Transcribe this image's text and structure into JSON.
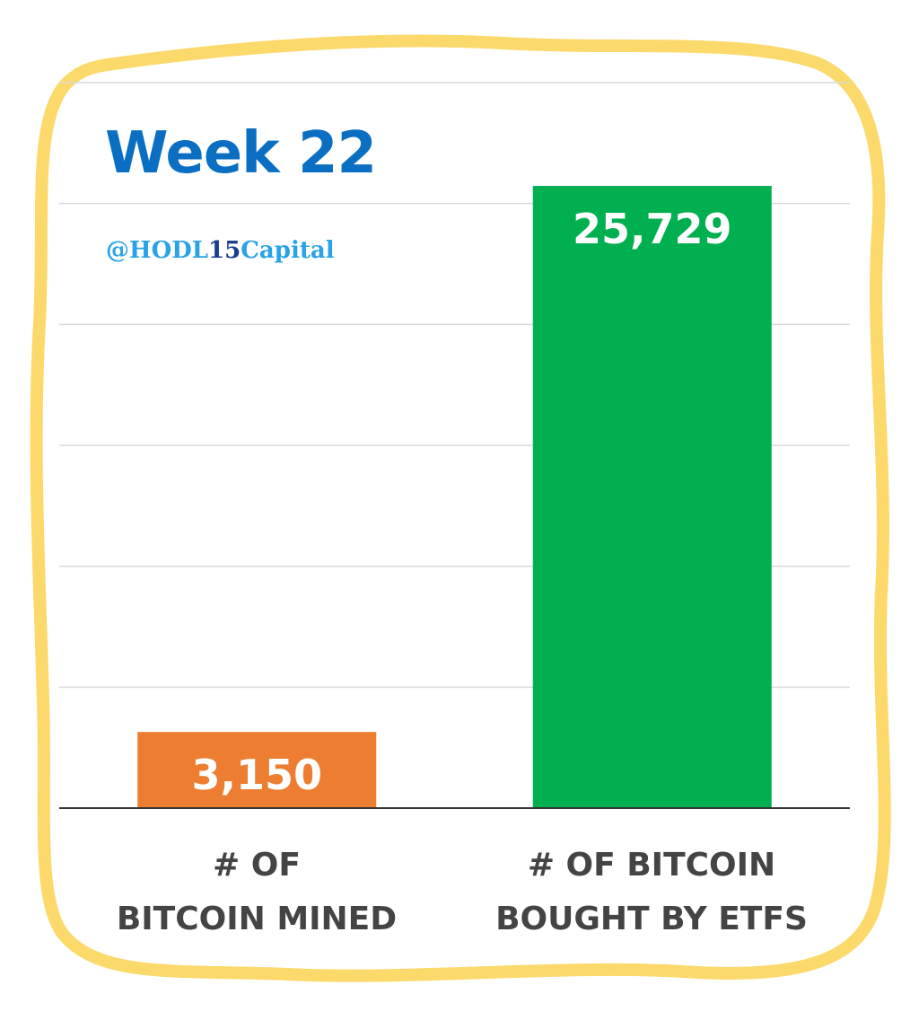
{
  "chart_data": {
    "type": "bar",
    "title": "Week 22",
    "subtitle": "@HODL15Capital",
    "categories": [
      "# OF BITCOIN MINED",
      "# OF BITCOIN BOUGHT BY ETFS"
    ],
    "category_lines": [
      [
        "# OF",
        "BITCOIN MINED"
      ],
      [
        "# OF BITCOIN",
        "BOUGHT BY ETFS"
      ]
    ],
    "values": [
      3150,
      25729
    ],
    "value_labels": [
      "3,150",
      "25,729"
    ],
    "colors": [
      "#ed7d31",
      "#00b050"
    ],
    "ylim": [
      0,
      30000
    ],
    "grid": true,
    "legend": "none",
    "xlabel": "",
    "ylabel": ""
  },
  "frame_color": "#fbd96a",
  "title_color": "#0a6fc2"
}
